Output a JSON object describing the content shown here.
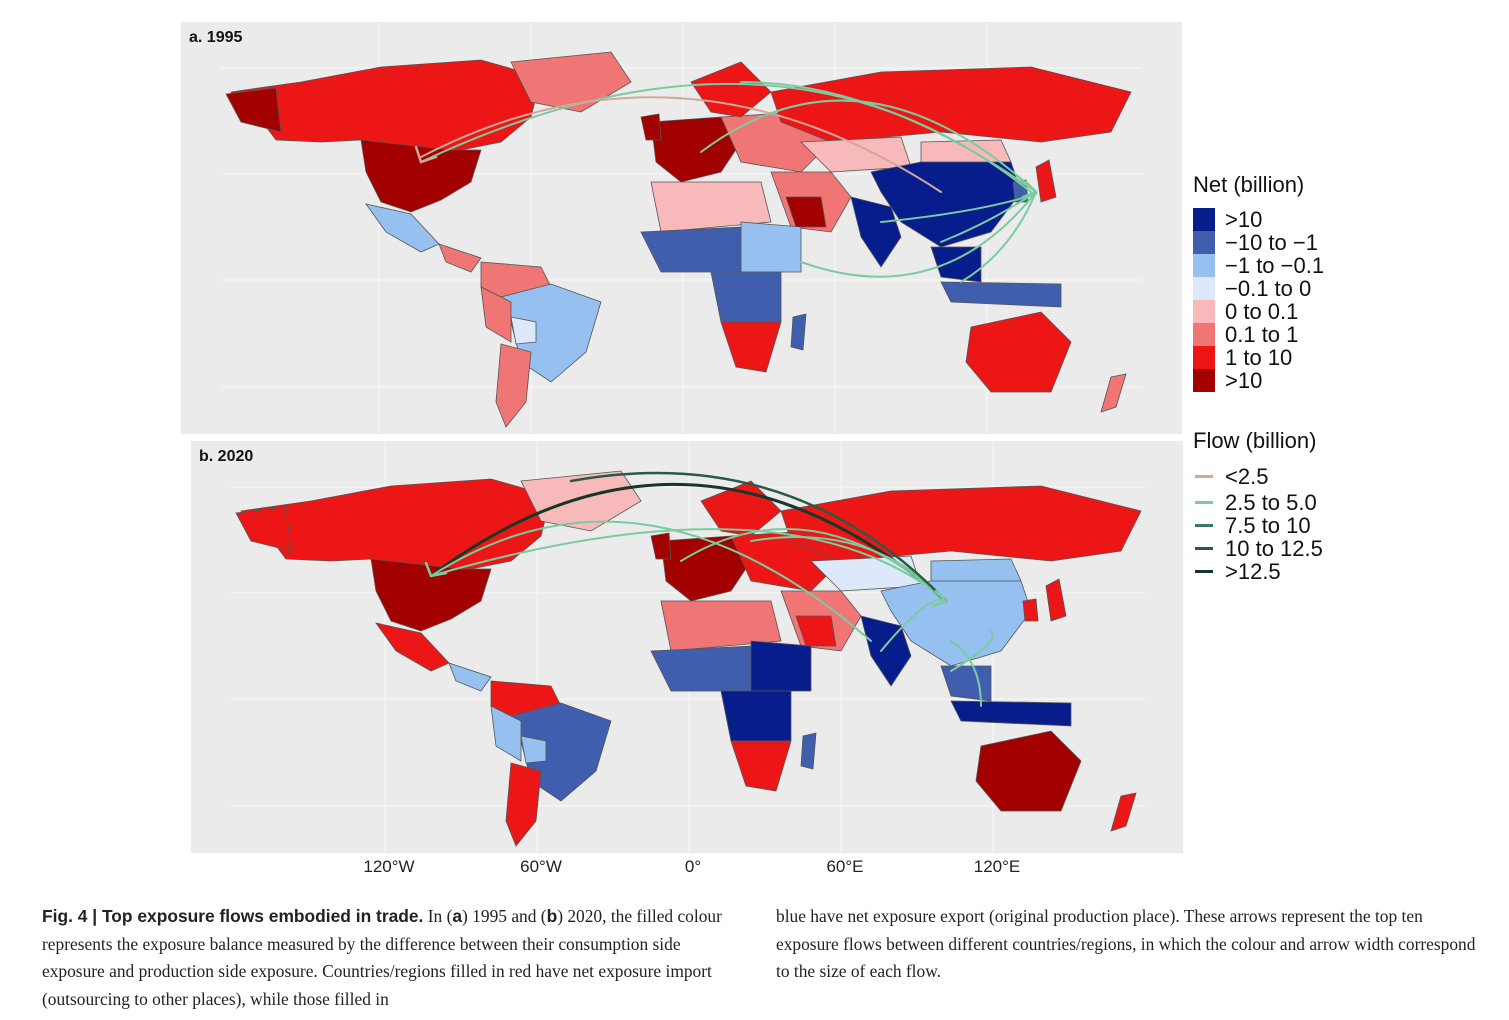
{
  "panels": [
    {
      "label": "a. 1995"
    },
    {
      "label": "b. 2020"
    }
  ],
  "x_axis_ticks": [
    "120°W",
    "60°W",
    "0°",
    "60°E",
    "120°E"
  ],
  "legend_net": {
    "title": "Net (billion)",
    "entries": [
      {
        "label": ">10",
        "color": "#081d8c"
      },
      {
        "label": "−10 to −1",
        "color": "#3f5fae"
      },
      {
        "label": "−1 to −0.1",
        "color": "#95c0f0"
      },
      {
        "label": "−0.1 to 0",
        "color": "#dde9fb"
      },
      {
        "label": "0 to 0.1",
        "color": "#f7b9b9"
      },
      {
        "label": "0.1 to 1",
        "color": "#f07676"
      },
      {
        "label": "1 to 10",
        "color": "#ec1616"
      },
      {
        "label": ">10",
        "color": "#a30000"
      }
    ]
  },
  "legend_flow": {
    "title": "Flow (billion)",
    "entries": [
      {
        "label": "<2.5",
        "color": "#d2a79a"
      },
      {
        "label": "2.5 to 5.0",
        "color": "#7ccb9e"
      },
      {
        "label": "7.5 to 10",
        "color": "#3a7a5d"
      },
      {
        "label": "10 to 12.5",
        "color": "#2b5a45"
      },
      {
        "label": ">12.5",
        "color": "#163828"
      }
    ]
  },
  "caption": {
    "fig_label": "Fig. 4 | Top exposure flows embodied in trade.",
    "text_a_1": " In (",
    "a": "a",
    "text_a_2": ") 1995 and (",
    "b": "b",
    "text_a_3": ") 2020, the filled colour represents the exposure balance measured by the difference between their consumption side exposure and production side exposure. Countries/regions filled in red have net exposure import (outsourcing to other places), while those filled in",
    "text_b": "blue have net exposure export (original production place). These arrows represent the top ten exposure flows between different countries/regions, in which the colour and arrow width correspond to the size of each flow."
  }
}
